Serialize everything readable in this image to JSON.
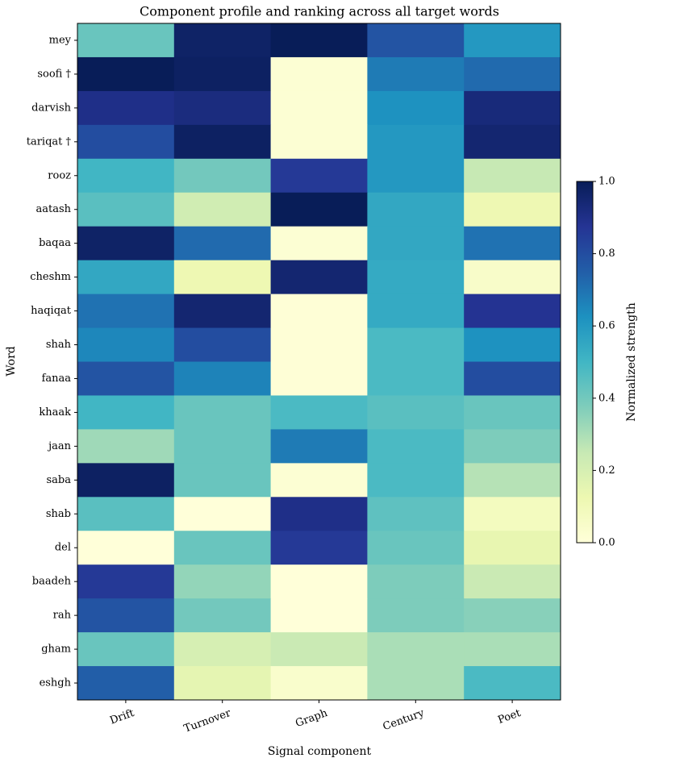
{
  "chart_data": {
    "type": "heatmap",
    "title": "Component profile and ranking across all target words",
    "x_label": "Signal component",
    "y_label": "Word",
    "colorbar_label": "Normalized strength",
    "categories": [
      "Drift",
      "Turnover",
      "Graph",
      "Century",
      "Poet"
    ],
    "rows": [
      "mey",
      "soofi †",
      "darvish",
      "tariqat †",
      "rooz",
      "aatash",
      "baqaa",
      "cheshm",
      "haqiqat",
      "shah",
      "fanaa",
      "khaak",
      "jaan",
      "saba",
      "shab",
      "del",
      "baadeh",
      "rah",
      "gham",
      "eshgh"
    ],
    "values": [
      [
        0.42,
        0.97,
        1.0,
        0.78,
        0.6
      ],
      [
        1.0,
        0.98,
        0.02,
        0.68,
        0.72
      ],
      [
        0.9,
        0.92,
        0.02,
        0.62,
        0.93
      ],
      [
        0.8,
        0.98,
        0.02,
        0.6,
        0.95
      ],
      [
        0.5,
        0.4,
        0.86,
        0.6,
        0.25
      ],
      [
        0.45,
        0.22,
        1.0,
        0.55,
        0.12
      ],
      [
        0.97,
        0.72,
        0.02,
        0.55,
        0.7
      ],
      [
        0.55,
        0.12,
        0.95,
        0.54,
        0.05
      ],
      [
        0.7,
        0.95,
        0.01,
        0.54,
        0.88
      ],
      [
        0.65,
        0.8,
        0.01,
        0.48,
        0.62
      ],
      [
        0.78,
        0.66,
        0.01,
        0.48,
        0.8
      ],
      [
        0.5,
        0.42,
        0.48,
        0.45,
        0.42
      ],
      [
        0.32,
        0.42,
        0.68,
        0.48,
        0.38
      ],
      [
        0.98,
        0.42,
        0.02,
        0.48,
        0.28
      ],
      [
        0.45,
        0.0,
        0.9,
        0.44,
        0.08
      ],
      [
        0.0,
        0.42,
        0.86,
        0.42,
        0.14
      ],
      [
        0.86,
        0.34,
        0.0,
        0.38,
        0.24
      ],
      [
        0.78,
        0.4,
        0.0,
        0.38,
        0.36
      ],
      [
        0.42,
        0.2,
        0.24,
        0.3,
        0.3
      ],
      [
        0.75,
        0.15,
        0.04,
        0.3,
        0.48
      ]
    ],
    "colormap": [
      "#ffffd9",
      "#edf8b1",
      "#c7e9b4",
      "#7fcdbb",
      "#41b6c4",
      "#1d91c0",
      "#225ea8",
      "#253494",
      "#081d58"
    ],
    "vlim": [
      0,
      1
    ],
    "cticks": [
      {
        "value": 0,
        "label": "0.0"
      },
      0.2,
      0.4,
      0.6,
      0.8,
      {
        "value": 1,
        "label": "1.0"
      }
    ]
  }
}
